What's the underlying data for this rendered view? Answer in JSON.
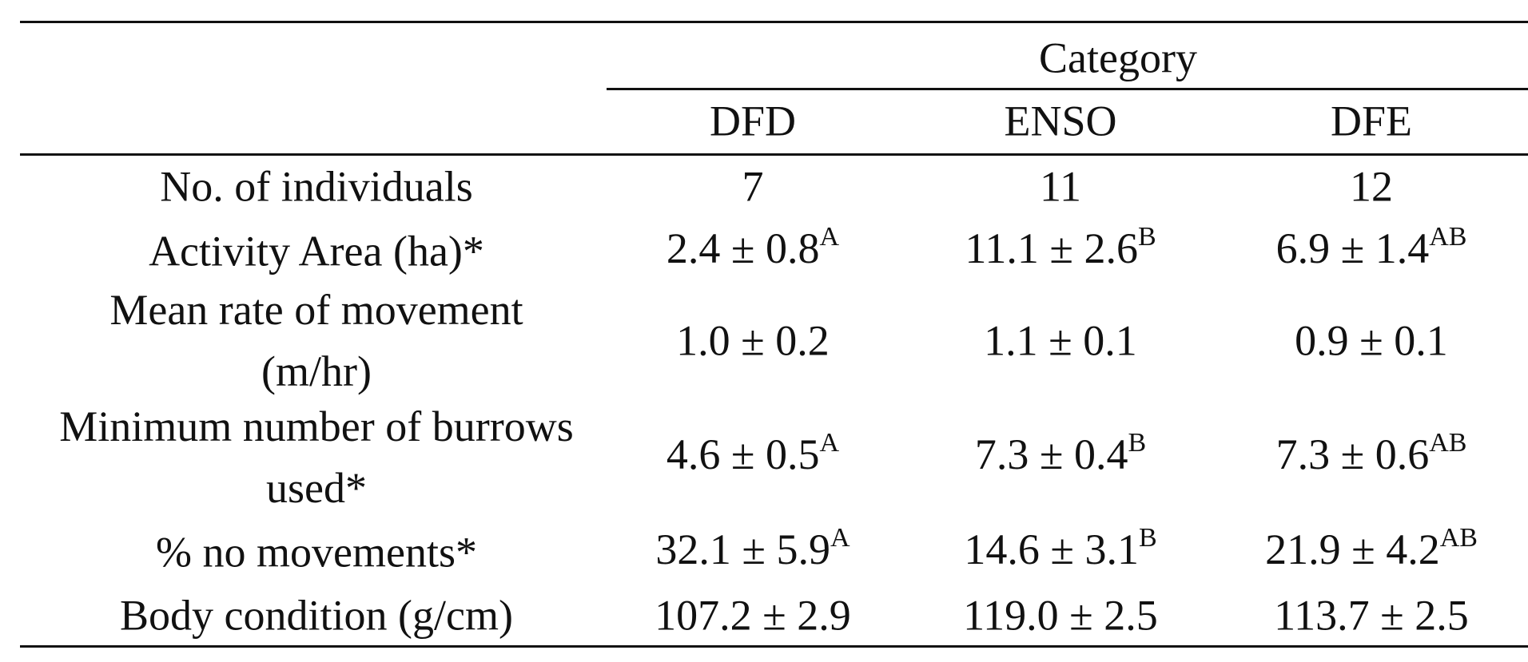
{
  "table": {
    "group_header": "Category",
    "columns": [
      "DFD",
      "ENSO",
      "DFE"
    ],
    "rows": [
      {
        "label": "No. of individuals",
        "cells": [
          {
            "text": "7"
          },
          {
            "text": "11"
          },
          {
            "text": "12"
          }
        ]
      },
      {
        "label": "Activity Area (ha)*",
        "cells": [
          {
            "text": "2.4 ± 0.8",
            "sup": "A"
          },
          {
            "text": "11.1 ± 2.6",
            "sup": "B"
          },
          {
            "text": "6.9 ± 1.4",
            "sup": "AB"
          }
        ]
      },
      {
        "label": "Mean rate of movement (m/hr)",
        "cells": [
          {
            "text": "1.0 ± 0.2"
          },
          {
            "text": "1.1 ± 0.1"
          },
          {
            "text": "0.9 ± 0.1"
          }
        ]
      },
      {
        "label": "Minimum number of burrows used*",
        "cells": [
          {
            "text": "4.6 ± 0.5",
            "sup": "A"
          },
          {
            "text": "7.3 ± 0.4",
            "sup": "B"
          },
          {
            "text": "7.3 ± 0.6",
            "sup": "AB"
          }
        ]
      },
      {
        "label": "% no movements*",
        "cells": [
          {
            "text": "32.1 ± 5.9",
            "sup": "A"
          },
          {
            "text": "14.6 ± 3.1",
            "sup": "B"
          },
          {
            "text": "21.9 ± 4.2",
            "sup": "AB"
          }
        ]
      },
      {
        "label": "Body condition (g/cm)",
        "cells": [
          {
            "text": "107.2 ± 2.9"
          },
          {
            "text": "119.0 ± 2.5"
          },
          {
            "text": "113.7 ± 2.5"
          }
        ]
      }
    ]
  }
}
